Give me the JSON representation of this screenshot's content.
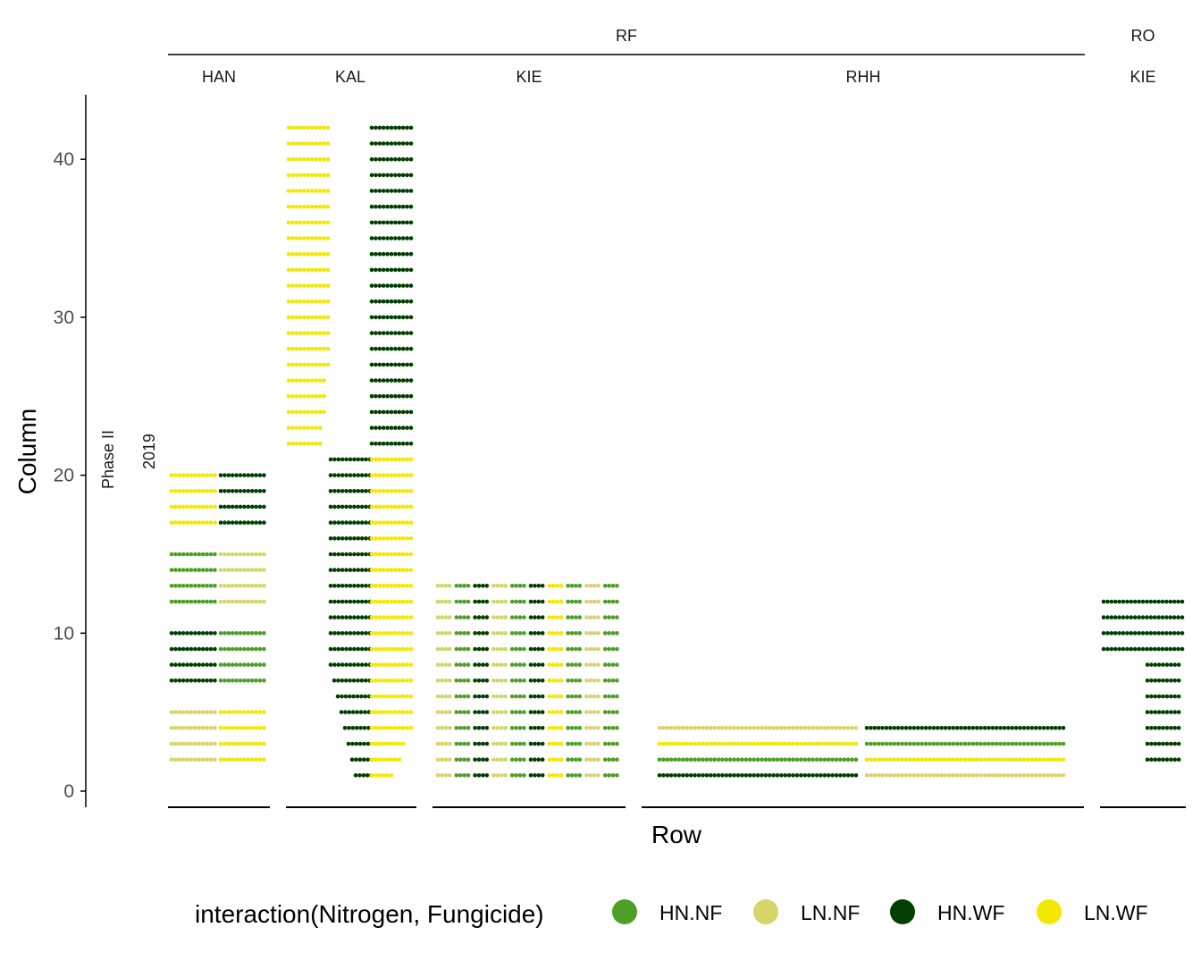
{
  "chart_data": {
    "type": "scatter",
    "xlabel": "Row",
    "ylabel": "Column",
    "ylim": [
      0,
      42
    ],
    "yticks": [
      0,
      10,
      20,
      30,
      40
    ],
    "grid": false,
    "legend_position": "bottom",
    "row_strips": [
      "Phase II",
      "2019"
    ],
    "column_groups": [
      {
        "label": "RF",
        "panels": [
          "HAN",
          "KAL",
          "KIE",
          "RHH"
        ]
      },
      {
        "label": "RO",
        "panels": [
          "KIE"
        ]
      }
    ],
    "legend": {
      "title": "interaction(Nitrogen, Fungicide)",
      "items": [
        {
          "label": "HN.NF",
          "color": "#4d9f25"
        },
        {
          "label": "LN.NF",
          "color": "#d5d56a"
        },
        {
          "label": "HN.WF",
          "color": "#003f00"
        },
        {
          "label": "LN.WF",
          "color": "#f2e800"
        }
      ]
    },
    "panels": [
      {
        "location": "RF",
        "site": "HAN",
        "rows": [
          1,
          12
        ],
        "columns": [
          2,
          20
        ],
        "treatments": [
          {
            "col_range": [
              2,
              5
            ],
            "left": "LN.NF",
            "right": "LN.WF"
          },
          {
            "col_range": [
              7,
              10
            ],
            "left": "HN.WF",
            "right": "HN.NF"
          },
          {
            "col_range": [
              12,
              15
            ],
            "left": "HN.NF",
            "right": "LN.NF"
          },
          {
            "col_range": [
              17,
              20
            ],
            "left": "LN.WF",
            "right": "HN.WF"
          }
        ]
      },
      {
        "location": "RF",
        "site": "KAL",
        "rows": [
          1,
          16
        ],
        "columns": [
          1,
          42
        ],
        "treatments": [
          {
            "col_range": [
              22,
              42
            ],
            "left": "LN.WF",
            "right": "HN.WF"
          },
          {
            "col_range": [
              1,
              21
            ],
            "left": "HN.WF",
            "right": "LN.WF"
          }
        ]
      },
      {
        "location": "RF",
        "site": "KIE",
        "rows": [
          1,
          24
        ],
        "columns": [
          1,
          13
        ],
        "treatments": [
          {
            "col_range": [
              1,
              13
            ],
            "pattern": [
              "LN.NF",
              "HN.NF",
              "HN.WF",
              "LN.NF",
              "HN.NF",
              "HN.WF",
              "LN.WF",
              "HN.NF",
              "LN.NF",
              "HN.NF"
            ]
          }
        ]
      },
      {
        "location": "RF",
        "site": "RHH",
        "rows": [
          1,
          54
        ],
        "columns": [
          1,
          4
        ],
        "treatments": [
          {
            "col": 4,
            "left": "LN.NF",
            "right": "HN.WF"
          },
          {
            "col": 3,
            "left": "LN.WF",
            "right": "HN.NF"
          },
          {
            "col": 2,
            "left": "HN.NF",
            "right": "LN.WF"
          },
          {
            "col": 1,
            "left": "HN.WF",
            "right": "LN.NF"
          }
        ]
      },
      {
        "location": "RO",
        "site": "KIE",
        "rows": [
          1,
          10
        ],
        "columns": [
          2,
          12
        ],
        "treatments": [
          {
            "col_range": [
              9,
              12
            ],
            "color": "HN.WF"
          },
          {
            "col_range": [
              2,
              8
            ],
            "color": "HN.WF",
            "rows": [
              6,
              10
            ]
          }
        ]
      }
    ]
  }
}
